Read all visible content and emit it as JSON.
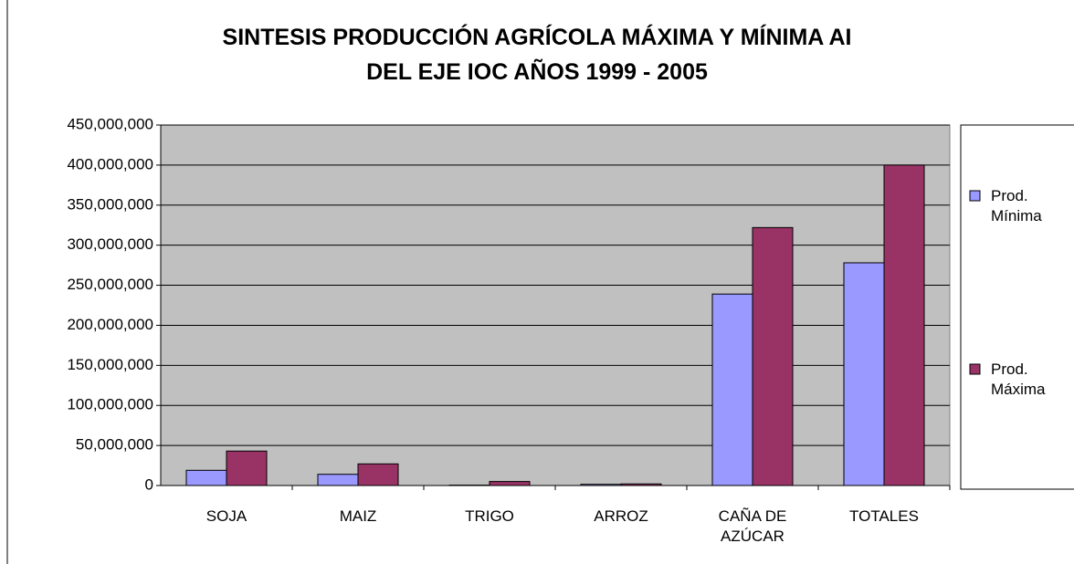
{
  "chart_data": {
    "type": "bar",
    "title": "SINTESIS  PRODUCCIÓN AGRÍCOLA MÁXIMA Y MÍNIMA AI\nDEL EJE IOC AÑOS 1999 - 2005",
    "categories": [
      "SOJA",
      "MAIZ",
      "TRIGO",
      "ARROZ",
      "CAÑA DE AZÚCAR",
      "TOTALES"
    ],
    "series": [
      {
        "name": "Prod. Mínima",
        "color": "#9999ff",
        "values": [
          19000000,
          14000000,
          500000,
          1500000,
          239000000,
          278000000
        ]
      },
      {
        "name": "Prod. Máxima",
        "color": "#993366",
        "values": [
          43000000,
          27000000,
          5000000,
          2000000,
          322000000,
          400000000
        ]
      }
    ],
    "ylim": [
      0,
      450000000
    ],
    "yticks": [
      0,
      {
        "value": 50000000,
        "label": "50,000,000"
      },
      {
        "value": 100000000,
        "label": "100,000,000"
      },
      {
        "value": 150000000,
        "label": "150,000,000"
      },
      {
        "value": 200000000,
        "label": "200,000,000"
      },
      {
        "value": 250000000,
        "label": "250,000,000"
      },
      {
        "value": 300000000,
        "label": "300,000,000"
      },
      {
        "value": 350000000,
        "label": "350,000,000"
      },
      {
        "value": 400000000,
        "label": "400,000,000"
      },
      {
        "value": 450000000,
        "label": "450,000,000"
      }
    ],
    "grid": true,
    "legend": "right"
  }
}
